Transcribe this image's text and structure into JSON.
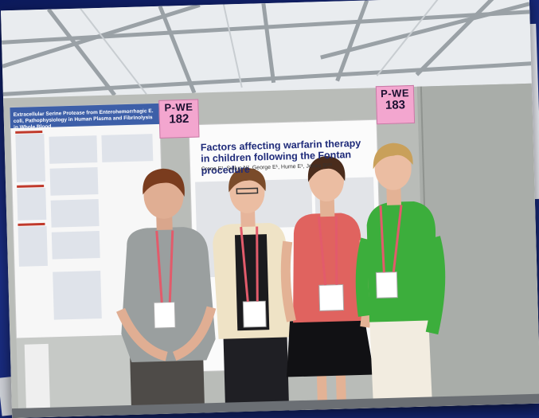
{
  "photo": {
    "sign_left": {
      "code": "P-WE",
      "number": "182"
    },
    "sign_right": {
      "code": "P-WE",
      "number": "183"
    },
    "poster_main": {
      "title": "Factors affecting warfarin therapy in children following the Fontan procedure",
      "authors": "Crone E¹, Sullus N², George E¹, Hume E¹, Jones S¹²³"
    },
    "poster_left": {
      "title": "Extracellular Serine Protease from Enterohemorrhagic E. coli, Pathophysiology in Human Plasma and Fibrinolysis in Whole Blood"
    }
  }
}
